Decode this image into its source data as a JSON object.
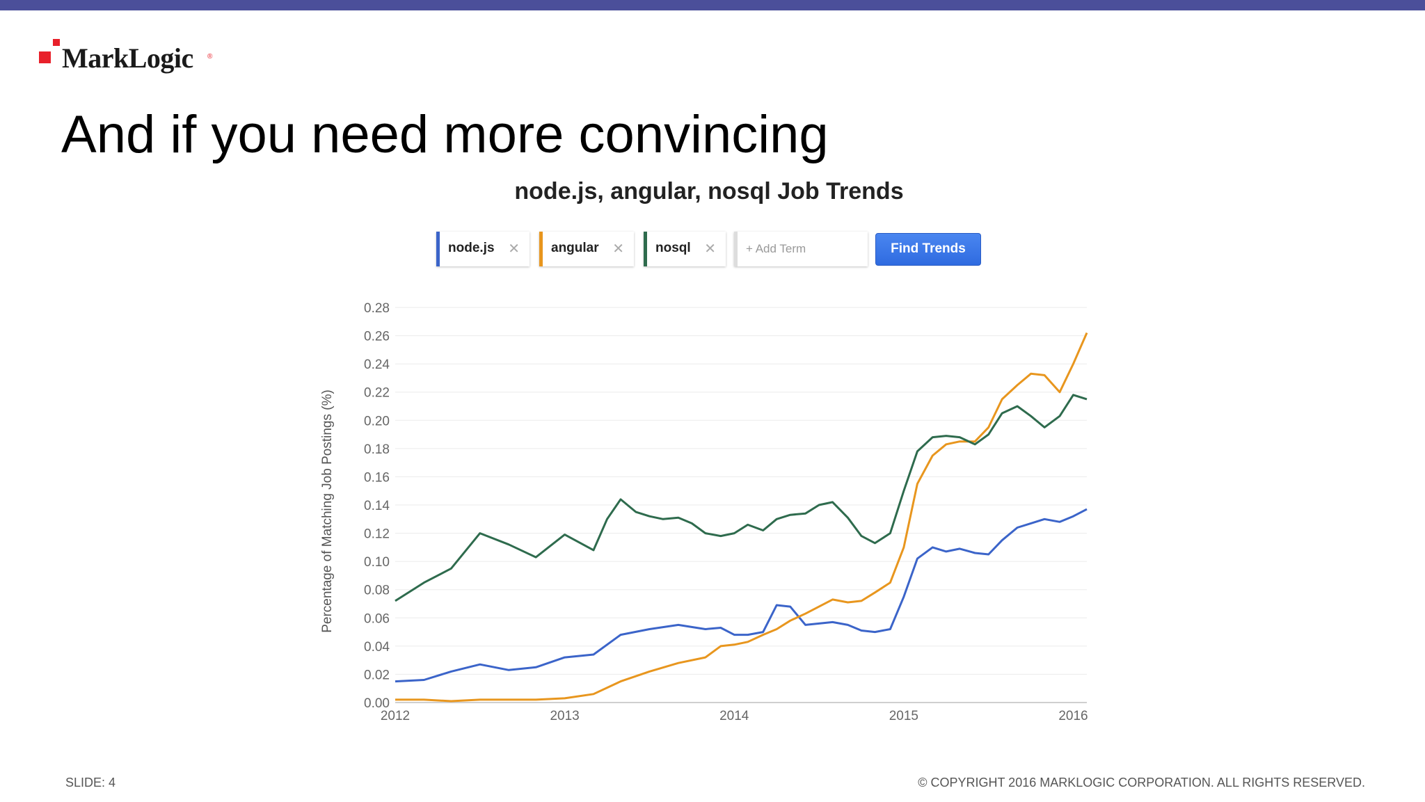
{
  "header": {
    "brand": "MarkLogic",
    "registered_mark": "®",
    "title": "And if you need more convincing"
  },
  "search": {
    "terms": [
      {
        "label": "node.js",
        "color": "#3b64c9"
      },
      {
        "label": "angular",
        "color": "#e8961e"
      },
      {
        "label": "nosql",
        "color": "#2e6b4d"
      }
    ],
    "add_placeholder": "+ Add Term",
    "remove_icon": "close-icon",
    "button_label": "Find Trends"
  },
  "chart_data": {
    "type": "line",
    "title": "node.js, angular, nosql Job Trends",
    "xlabel": "",
    "ylabel": "Percentage of Matching Job Postings (%)",
    "xlim": [
      2012,
      2016.08
    ],
    "ylim": [
      0,
      0.28
    ],
    "x_ticks": [
      "2012",
      "2013",
      "2014",
      "2015",
      "2016"
    ],
    "y_ticks": [
      "0.00",
      "0.02",
      "0.04",
      "0.06",
      "0.08",
      "0.10",
      "0.12",
      "0.14",
      "0.16",
      "0.18",
      "0.20",
      "0.22",
      "0.24",
      "0.26",
      "0.28"
    ],
    "grid": true,
    "legend": "none",
    "series": [
      {
        "name": "node.js",
        "color": "#3b64c9",
        "points": [
          [
            2012.0,
            0.015
          ],
          [
            2012.17,
            0.016
          ],
          [
            2012.33,
            0.022
          ],
          [
            2012.5,
            0.027
          ],
          [
            2012.67,
            0.023
          ],
          [
            2012.83,
            0.025
          ],
          [
            2013.0,
            0.032
          ],
          [
            2013.17,
            0.034
          ],
          [
            2013.33,
            0.048
          ],
          [
            2013.5,
            0.052
          ],
          [
            2013.67,
            0.055
          ],
          [
            2013.83,
            0.052
          ],
          [
            2013.92,
            0.053
          ],
          [
            2014.0,
            0.048
          ],
          [
            2014.08,
            0.048
          ],
          [
            2014.17,
            0.05
          ],
          [
            2014.25,
            0.069
          ],
          [
            2014.33,
            0.068
          ],
          [
            2014.42,
            0.055
          ],
          [
            2014.5,
            0.056
          ],
          [
            2014.58,
            0.057
          ],
          [
            2014.67,
            0.055
          ],
          [
            2014.75,
            0.051
          ],
          [
            2014.83,
            0.05
          ],
          [
            2014.92,
            0.052
          ],
          [
            2015.0,
            0.075
          ],
          [
            2015.08,
            0.102
          ],
          [
            2015.17,
            0.11
          ],
          [
            2015.25,
            0.107
          ],
          [
            2015.33,
            0.109
          ],
          [
            2015.42,
            0.106
          ],
          [
            2015.5,
            0.105
          ],
          [
            2015.58,
            0.115
          ],
          [
            2015.67,
            0.124
          ],
          [
            2015.75,
            0.127
          ],
          [
            2015.83,
            0.13
          ],
          [
            2015.92,
            0.128
          ],
          [
            2016.0,
            0.132
          ],
          [
            2016.08,
            0.137
          ]
        ]
      },
      {
        "name": "angular",
        "color": "#e8961e",
        "points": [
          [
            2012.0,
            0.002
          ],
          [
            2012.17,
            0.002
          ],
          [
            2012.33,
            0.001
          ],
          [
            2012.5,
            0.002
          ],
          [
            2012.67,
            0.002
          ],
          [
            2012.83,
            0.002
          ],
          [
            2013.0,
            0.003
          ],
          [
            2013.17,
            0.006
          ],
          [
            2013.33,
            0.015
          ],
          [
            2013.5,
            0.022
          ],
          [
            2013.67,
            0.028
          ],
          [
            2013.83,
            0.032
          ],
          [
            2013.92,
            0.04
          ],
          [
            2014.0,
            0.041
          ],
          [
            2014.08,
            0.043
          ],
          [
            2014.17,
            0.048
          ],
          [
            2014.25,
            0.052
          ],
          [
            2014.33,
            0.058
          ],
          [
            2014.42,
            0.063
          ],
          [
            2014.5,
            0.068
          ],
          [
            2014.58,
            0.073
          ],
          [
            2014.67,
            0.071
          ],
          [
            2014.75,
            0.072
          ],
          [
            2014.83,
            0.078
          ],
          [
            2014.92,
            0.085
          ],
          [
            2015.0,
            0.11
          ],
          [
            2015.08,
            0.155
          ],
          [
            2015.17,
            0.175
          ],
          [
            2015.25,
            0.183
          ],
          [
            2015.33,
            0.185
          ],
          [
            2015.42,
            0.185
          ],
          [
            2015.5,
            0.195
          ],
          [
            2015.58,
            0.215
          ],
          [
            2015.67,
            0.225
          ],
          [
            2015.75,
            0.233
          ],
          [
            2015.83,
            0.232
          ],
          [
            2015.92,
            0.22
          ],
          [
            2016.0,
            0.24
          ],
          [
            2016.08,
            0.262
          ]
        ]
      },
      {
        "name": "nosql",
        "color": "#2e6b4d",
        "points": [
          [
            2012.0,
            0.072
          ],
          [
            2012.17,
            0.085
          ],
          [
            2012.33,
            0.095
          ],
          [
            2012.5,
            0.12
          ],
          [
            2012.67,
            0.112
          ],
          [
            2012.83,
            0.103
          ],
          [
            2013.0,
            0.119
          ],
          [
            2013.17,
            0.108
          ],
          [
            2013.25,
            0.13
          ],
          [
            2013.33,
            0.144
          ],
          [
            2013.42,
            0.135
          ],
          [
            2013.5,
            0.132
          ],
          [
            2013.58,
            0.13
          ],
          [
            2013.67,
            0.131
          ],
          [
            2013.75,
            0.127
          ],
          [
            2013.83,
            0.12
          ],
          [
            2013.92,
            0.118
          ],
          [
            2014.0,
            0.12
          ],
          [
            2014.08,
            0.126
          ],
          [
            2014.17,
            0.122
          ],
          [
            2014.25,
            0.13
          ],
          [
            2014.33,
            0.133
          ],
          [
            2014.42,
            0.134
          ],
          [
            2014.5,
            0.14
          ],
          [
            2014.58,
            0.142
          ],
          [
            2014.67,
            0.131
          ],
          [
            2014.75,
            0.118
          ],
          [
            2014.83,
            0.113
          ],
          [
            2014.92,
            0.12
          ],
          [
            2015.0,
            0.15
          ],
          [
            2015.08,
            0.178
          ],
          [
            2015.17,
            0.188
          ],
          [
            2015.25,
            0.189
          ],
          [
            2015.33,
            0.188
          ],
          [
            2015.42,
            0.183
          ],
          [
            2015.5,
            0.19
          ],
          [
            2015.58,
            0.205
          ],
          [
            2015.67,
            0.21
          ],
          [
            2015.75,
            0.203
          ],
          [
            2015.83,
            0.195
          ],
          [
            2015.92,
            0.203
          ],
          [
            2016.0,
            0.218
          ],
          [
            2016.08,
            0.215
          ]
        ]
      }
    ]
  },
  "footer": {
    "slide": "SLIDE: 4",
    "copyright": "© COPYRIGHT 2016 MARKLOGIC CORPORATION. ALL RIGHTS RESERVED."
  }
}
